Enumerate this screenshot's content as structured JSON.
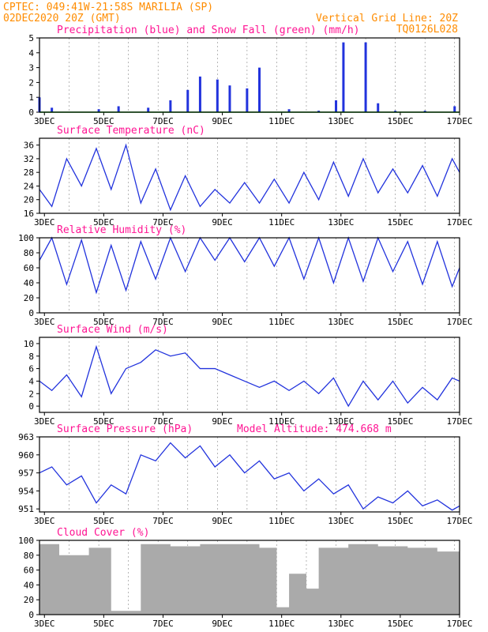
{
  "header": {
    "left_line1": "CPTEC:  049:41W-21:58S  MARILIA (SP)",
    "left_line2": "02DEC2020 20Z (GMT)",
    "right_line1": "Vertical Grid Line: 20Z",
    "right_line2": "TQ0126L028"
  },
  "colors": {
    "header": "#ff8c00",
    "title": "#ff1493",
    "line": "#2233dd",
    "snow": "#00aa00",
    "cloud": "#aaaaaa"
  },
  "x_tick_labels": [
    "3DEC",
    "5DEC",
    "7DEC",
    "9DEC",
    "11DEC",
    "13DEC",
    "15DEC",
    "17DEC"
  ],
  "chart_data": [
    {
      "type": "bar",
      "title": "Precipitation (blue) and Snow Fall (green) (mm/h)",
      "y_ticks": [
        "0",
        "1",
        "2",
        "3",
        "4",
        "5"
      ],
      "ylim": [
        0,
        5
      ],
      "x": [
        "02DEC 20Z",
        "03DEC 06Z",
        "04DEC 20Z",
        "05DEC 12Z",
        "06DEC 12Z",
        "07DEC 06Z",
        "07DEC 20Z",
        "08DEC 06Z",
        "08DEC 20Z",
        "09DEC 06Z",
        "09DEC 20Z",
        "10DEC 06Z",
        "11DEC 06Z",
        "12DEC 06Z",
        "12DEC 20Z",
        "13DEC 02Z",
        "13DEC 20Z",
        "14DEC 06Z",
        "14DEC 20Z",
        "15DEC 20Z",
        "16DEC 20Z"
      ],
      "series": [
        {
          "name": "Precipitation",
          "values": [
            1.0,
            0.3,
            0.2,
            0.4,
            0.3,
            0.8,
            1.5,
            2.4,
            2.2,
            1.8,
            1.6,
            3.0,
            0.2,
            0.1,
            0.8,
            4.7,
            4.7,
            0.6,
            0.1,
            0.1,
            0.4
          ]
        },
        {
          "name": "Snow Fall",
          "values": [
            0,
            0,
            0,
            0,
            0,
            0,
            0,
            0,
            0,
            0,
            0,
            0,
            0,
            0,
            0,
            0,
            0,
            0,
            0,
            0,
            0
          ]
        }
      ]
    },
    {
      "type": "line",
      "title": "Surface Temperature (nC)",
      "y_ticks": [
        "16",
        "20",
        "24",
        "28",
        "32",
        "36"
      ],
      "ylim": [
        16,
        38
      ],
      "x": [
        "02DEC 20Z",
        "03DEC 06Z",
        "03DEC 18Z",
        "04DEC 06Z",
        "04DEC 18Z",
        "05DEC 06Z",
        "05DEC 18Z",
        "06DEC 06Z",
        "06DEC 18Z",
        "07DEC 06Z",
        "07DEC 18Z",
        "08DEC 06Z",
        "08DEC 18Z",
        "09DEC 06Z",
        "09DEC 18Z",
        "10DEC 06Z",
        "10DEC 18Z",
        "11DEC 06Z",
        "11DEC 18Z",
        "12DEC 06Z",
        "12DEC 18Z",
        "13DEC 06Z",
        "13DEC 18Z",
        "14DEC 06Z",
        "14DEC 18Z",
        "15DEC 06Z",
        "15DEC 18Z",
        "16DEC 06Z",
        "16DEC 18Z",
        "17DEC 00Z"
      ],
      "values": [
        23,
        18,
        32,
        24,
        35,
        23,
        36,
        19,
        29,
        17,
        27,
        18,
        23,
        19,
        25,
        19,
        26,
        19,
        28,
        20,
        31,
        21,
        32,
        22,
        29,
        22,
        30,
        21,
        32,
        28
      ]
    },
    {
      "type": "line",
      "title": "Relative Humidity (%)",
      "y_ticks": [
        "0",
        "20",
        "40",
        "60",
        "80",
        "100"
      ],
      "ylim": [
        0,
        100
      ],
      "x": [
        "02DEC 20Z",
        "03DEC 06Z",
        "03DEC 18Z",
        "04DEC 06Z",
        "04DEC 18Z",
        "05DEC 06Z",
        "05DEC 18Z",
        "06DEC 06Z",
        "06DEC 18Z",
        "07DEC 06Z",
        "07DEC 18Z",
        "08DEC 06Z",
        "08DEC 18Z",
        "09DEC 06Z",
        "09DEC 18Z",
        "10DEC 06Z",
        "10DEC 18Z",
        "11DEC 06Z",
        "11DEC 18Z",
        "12DEC 06Z",
        "12DEC 18Z",
        "13DEC 06Z",
        "13DEC 18Z",
        "14DEC 06Z",
        "14DEC 18Z",
        "15DEC 06Z",
        "15DEC 18Z",
        "16DEC 06Z",
        "16DEC 18Z",
        "17DEC 00Z"
      ],
      "values": [
        70,
        100,
        38,
        97,
        27,
        90,
        30,
        95,
        45,
        100,
        55,
        100,
        70,
        100,
        68,
        100,
        62,
        100,
        45,
        100,
        40,
        100,
        42,
        100,
        55,
        95,
        38,
        95,
        35,
        60
      ]
    },
    {
      "type": "line",
      "title": "Surface Wind (m/s)",
      "y_ticks": [
        "0",
        "2",
        "4",
        "6",
        "8",
        "10"
      ],
      "ylim": [
        -1,
        11
      ],
      "x": [
        "02DEC 20Z",
        "03DEC 06Z",
        "03DEC 18Z",
        "04DEC 06Z",
        "04DEC 18Z",
        "05DEC 06Z",
        "05DEC 18Z",
        "06DEC 06Z",
        "06DEC 18Z",
        "07DEC 06Z",
        "07DEC 18Z",
        "08DEC 06Z",
        "08DEC 18Z",
        "09DEC 06Z",
        "09DEC 18Z",
        "10DEC 06Z",
        "10DEC 18Z",
        "11DEC 06Z",
        "11DEC 18Z",
        "12DEC 06Z",
        "12DEC 18Z",
        "13DEC 06Z",
        "13DEC 18Z",
        "14DEC 06Z",
        "14DEC 18Z",
        "15DEC 06Z",
        "15DEC 18Z",
        "16DEC 06Z",
        "16DEC 18Z",
        "17DEC 00Z"
      ],
      "values": [
        4,
        2.5,
        5,
        1.5,
        9.5,
        2,
        6,
        7,
        9,
        8,
        8.5,
        6,
        6,
        5,
        4,
        3,
        4,
        2.5,
        4,
        2,
        4.5,
        0,
        4,
        1,
        4,
        0.5,
        3,
        1,
        4.5,
        4
      ]
    },
    {
      "type": "line",
      "title": "Surface Pressure (hPa)",
      "annotation": "Model Altitude: 474.668 m",
      "y_ticks": [
        "951",
        "954",
        "957",
        "960",
        "963"
      ],
      "ylim": [
        950.5,
        963
      ],
      "x": [
        "02DEC 20Z",
        "03DEC 06Z",
        "03DEC 18Z",
        "04DEC 06Z",
        "04DEC 18Z",
        "05DEC 06Z",
        "05DEC 18Z",
        "06DEC 06Z",
        "06DEC 18Z",
        "07DEC 06Z",
        "07DEC 18Z",
        "08DEC 06Z",
        "08DEC 18Z",
        "09DEC 06Z",
        "09DEC 18Z",
        "10DEC 06Z",
        "10DEC 18Z",
        "11DEC 06Z",
        "11DEC 18Z",
        "12DEC 06Z",
        "12DEC 18Z",
        "13DEC 06Z",
        "13DEC 18Z",
        "14DEC 06Z",
        "14DEC 18Z",
        "15DEC 06Z",
        "15DEC 18Z",
        "16DEC 06Z",
        "16DEC 18Z",
        "17DEC 00Z"
      ],
      "values": [
        957,
        958,
        955,
        956.5,
        952,
        955,
        953.5,
        960,
        959,
        962,
        959.5,
        961.5,
        958,
        960,
        957,
        959,
        956,
        957,
        954,
        956,
        953.5,
        955,
        951,
        953,
        952,
        954,
        951.5,
        952.5,
        950.8,
        951.5
      ]
    },
    {
      "type": "bar",
      "title": "Cloud Cover (%)",
      "y_ticks": [
        "0",
        "20",
        "40",
        "60",
        "80",
        "100"
      ],
      "ylim": [
        0,
        100
      ],
      "x": [
        "02DEC 20Z",
        "03DEC 12Z",
        "04DEC 12Z",
        "05DEC 06Z",
        "06DEC 06Z",
        "07DEC 06Z",
        "08DEC 06Z",
        "09DEC 06Z",
        "10DEC 06Z",
        "10DEC 20Z",
        "11DEC 06Z",
        "11DEC 20Z",
        "12DEC 06Z",
        "13DEC 06Z",
        "14DEC 06Z",
        "15DEC 06Z",
        "16DEC 06Z",
        "17DEC 00Z"
      ],
      "values": [
        95,
        80,
        90,
        5,
        95,
        92,
        95,
        95,
        90,
        10,
        55,
        35,
        90,
        95,
        92,
        90,
        85,
        95
      ]
    }
  ]
}
